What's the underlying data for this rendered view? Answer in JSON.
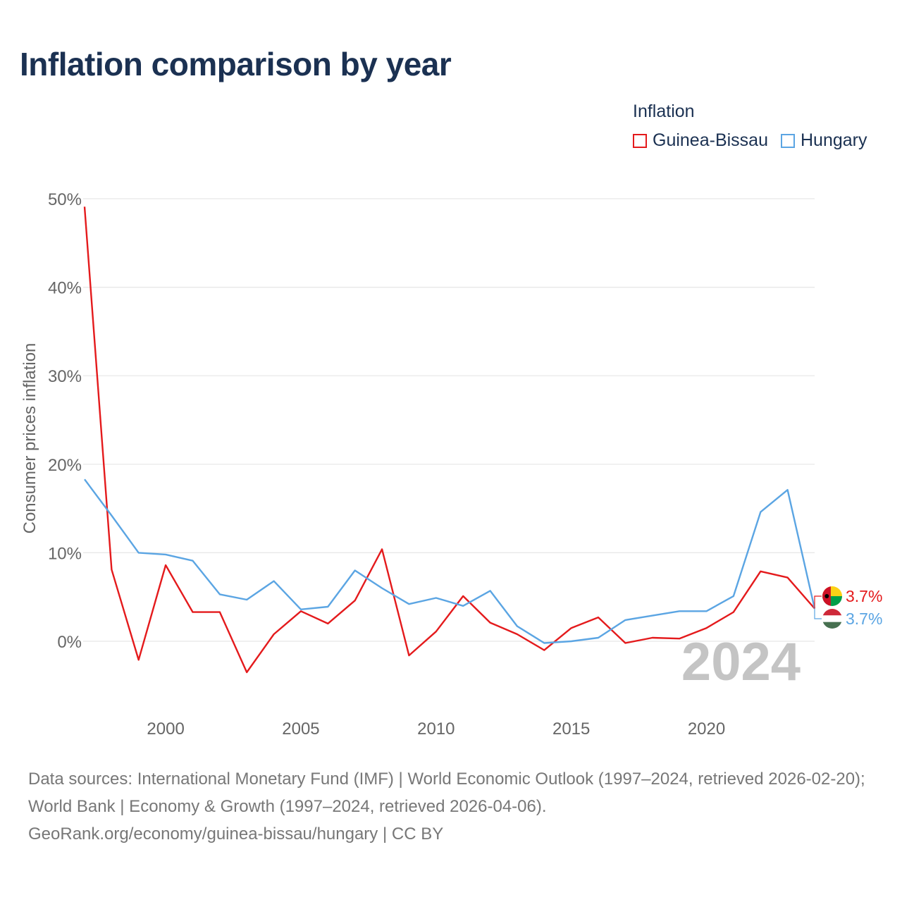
{
  "header": {
    "title": "Inflation comparison by year"
  },
  "legend": {
    "title": "Inflation",
    "items": [
      {
        "label": "Guinea-Bissau",
        "color": "#e41a1c"
      },
      {
        "label": "Hungary",
        "color": "#5ba5e3"
      }
    ]
  },
  "footer": {
    "source": "Data sources: International Monetary Fund (IMF) | World Economic Outlook (1997–2024, retrieved 2026-02-20); World Bank | Economy & Growth (1997–2024, retrieved 2026-04-06).",
    "attribution": "GeoRank.org/economy/guinea-bissau/hungary | CC BY"
  },
  "chart_data": {
    "type": "line",
    "title": "Inflation comparison by year",
    "xlabel": "",
    "ylabel": "Consumer prices inflation",
    "xlim": [
      1997,
      2024
    ],
    "ylim": [
      -8,
      50
    ],
    "yticks": [
      0,
      10,
      20,
      30,
      40,
      50
    ],
    "ytick_labels": [
      "0%",
      "10%",
      "20%",
      "30%",
      "40%",
      "50%"
    ],
    "xticks": [
      2000,
      2005,
      2010,
      2015,
      2020
    ],
    "xtick_labels": [
      "2000",
      "2005",
      "2010",
      "2015",
      "2020"
    ],
    "year_watermark": "2024",
    "x": [
      1997,
      1998,
      1999,
      2000,
      2001,
      2002,
      2003,
      2004,
      2005,
      2006,
      2007,
      2008,
      2009,
      2010,
      2011,
      2012,
      2013,
      2014,
      2015,
      2016,
      2017,
      2018,
      2019,
      2020,
      2021,
      2022,
      2023,
      2024
    ],
    "series": [
      {
        "name": "Guinea-Bissau",
        "color": "#e41a1c",
        "end_label": "3.7%",
        "values": [
          49.1,
          8.1,
          -2.1,
          8.6,
          3.3,
          3.3,
          -3.5,
          0.8,
          3.4,
          2.0,
          4.6,
          10.4,
          -1.6,
          1.1,
          5.1,
          2.1,
          0.8,
          -1.0,
          1.5,
          2.7,
          -0.2,
          0.4,
          0.3,
          1.5,
          3.3,
          7.9,
          7.2,
          3.7
        ]
      },
      {
        "name": "Hungary",
        "color": "#5ba5e3",
        "end_label": "3.7%",
        "values": [
          18.3,
          14.2,
          10.0,
          9.8,
          9.1,
          5.3,
          4.7,
          6.8,
          3.6,
          3.9,
          8.0,
          6.0,
          4.2,
          4.9,
          4.0,
          5.7,
          1.7,
          -0.2,
          0.0,
          0.4,
          2.4,
          2.9,
          3.4,
          3.4,
          5.1,
          14.6,
          17.1,
          3.7
        ]
      }
    ]
  }
}
